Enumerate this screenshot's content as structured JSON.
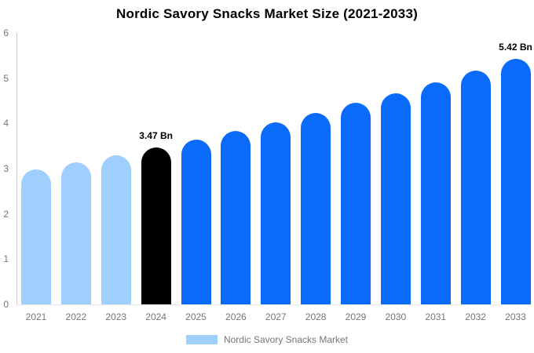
{
  "chart_data": {
    "type": "bar",
    "title": "Nordic Savory Snacks Market Size (2021-2033)",
    "xlabel": "",
    "ylabel": "",
    "categories": [
      "2021",
      "2022",
      "2023",
      "2024",
      "2025",
      "2026",
      "2027",
      "2028",
      "2029",
      "2030",
      "2031",
      "2032",
      "2033"
    ],
    "series": [
      {
        "name": "Nordic Savory Snacks Market",
        "values": [
          2.99,
          3.14,
          3.3,
          3.47,
          3.65,
          3.83,
          4.03,
          4.23,
          4.45,
          4.67,
          4.91,
          5.16,
          5.42
        ]
      }
    ],
    "bar_groups": [
      "historical",
      "historical",
      "historical",
      "base_year",
      "forecast",
      "forecast",
      "forecast",
      "forecast",
      "forecast",
      "forecast",
      "forecast",
      "forecast",
      "forecast"
    ],
    "group_colors": {
      "historical": "#9ECFFF",
      "base_year": "#000000",
      "forecast": "#0A6BFA"
    },
    "annotations": [
      {
        "category": "2024",
        "text": "3.47 Bn"
      },
      {
        "category": "2033",
        "text": "5.42 Bn"
      }
    ],
    "ylim": [
      0,
      6
    ],
    "yticks": [
      0,
      1,
      2,
      3,
      4,
      5,
      6
    ],
    "grid": false,
    "legend_position": "bottom",
    "units": "Bn"
  },
  "legend": {
    "label": "Nordic Savory Snacks Market",
    "swatch_color": "#9ECFFF"
  }
}
